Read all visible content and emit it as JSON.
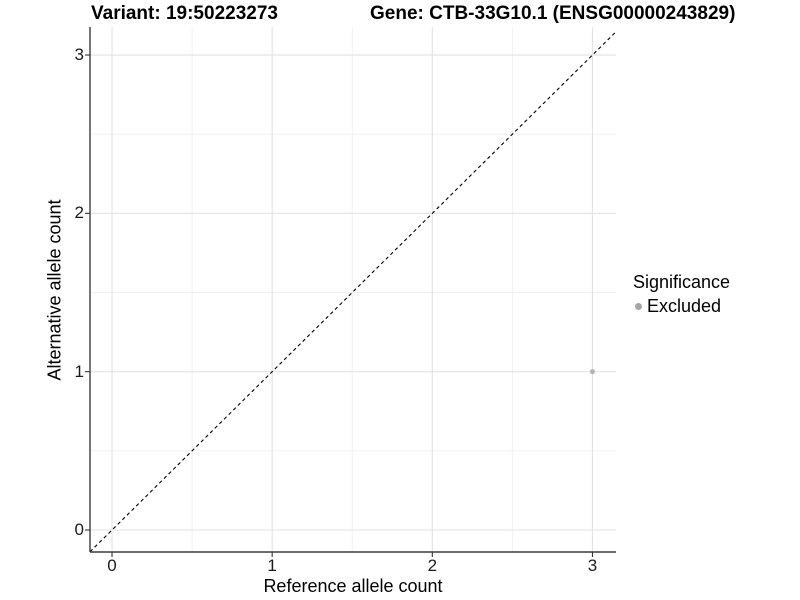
{
  "chart_data": {
    "type": "scatter",
    "titles": {
      "left": "Variant: 19:50223273",
      "right": "Gene: CTB-33G10.1 (ENSG00000243829)"
    },
    "xlabel": "Reference allele count",
    "ylabel": "Alternative allele count",
    "x_ticks": [
      "0",
      "1",
      "2",
      "3"
    ],
    "x_tick_values": [
      0,
      1,
      2,
      3
    ],
    "y_ticks": [
      "0",
      "1",
      "2",
      "3"
    ],
    "y_tick_values": [
      0,
      1,
      2,
      3
    ],
    "minor_tick_values": [
      0.5,
      1.5,
      2.5
    ],
    "xlim": [
      -0.1375,
      3.147
    ],
    "ylim": [
      -0.139,
      3.177
    ],
    "grid": {
      "major_on": true,
      "minor_on": true
    },
    "reference_line": {
      "type": "identity",
      "slope": 1,
      "intercept": 0,
      "style": "dashed",
      "color": "#000000"
    },
    "series": [
      {
        "name": "Excluded",
        "color": "#b3b3b3",
        "points": [
          [
            3,
            1
          ]
        ]
      }
    ],
    "legend": {
      "title": "Significance",
      "position": "right",
      "entries": [
        {
          "label": "Excluded",
          "color": "#a5a5a5"
        }
      ]
    }
  },
  "colors": {
    "background": "#ffffff",
    "grid_major": "#e2e2e2",
    "grid_minor": "#efefef",
    "axis_line": "#3c3c3c",
    "tick_mark": "#333333",
    "tick_text": "#1a1a1a",
    "title_text": "#000000"
  }
}
